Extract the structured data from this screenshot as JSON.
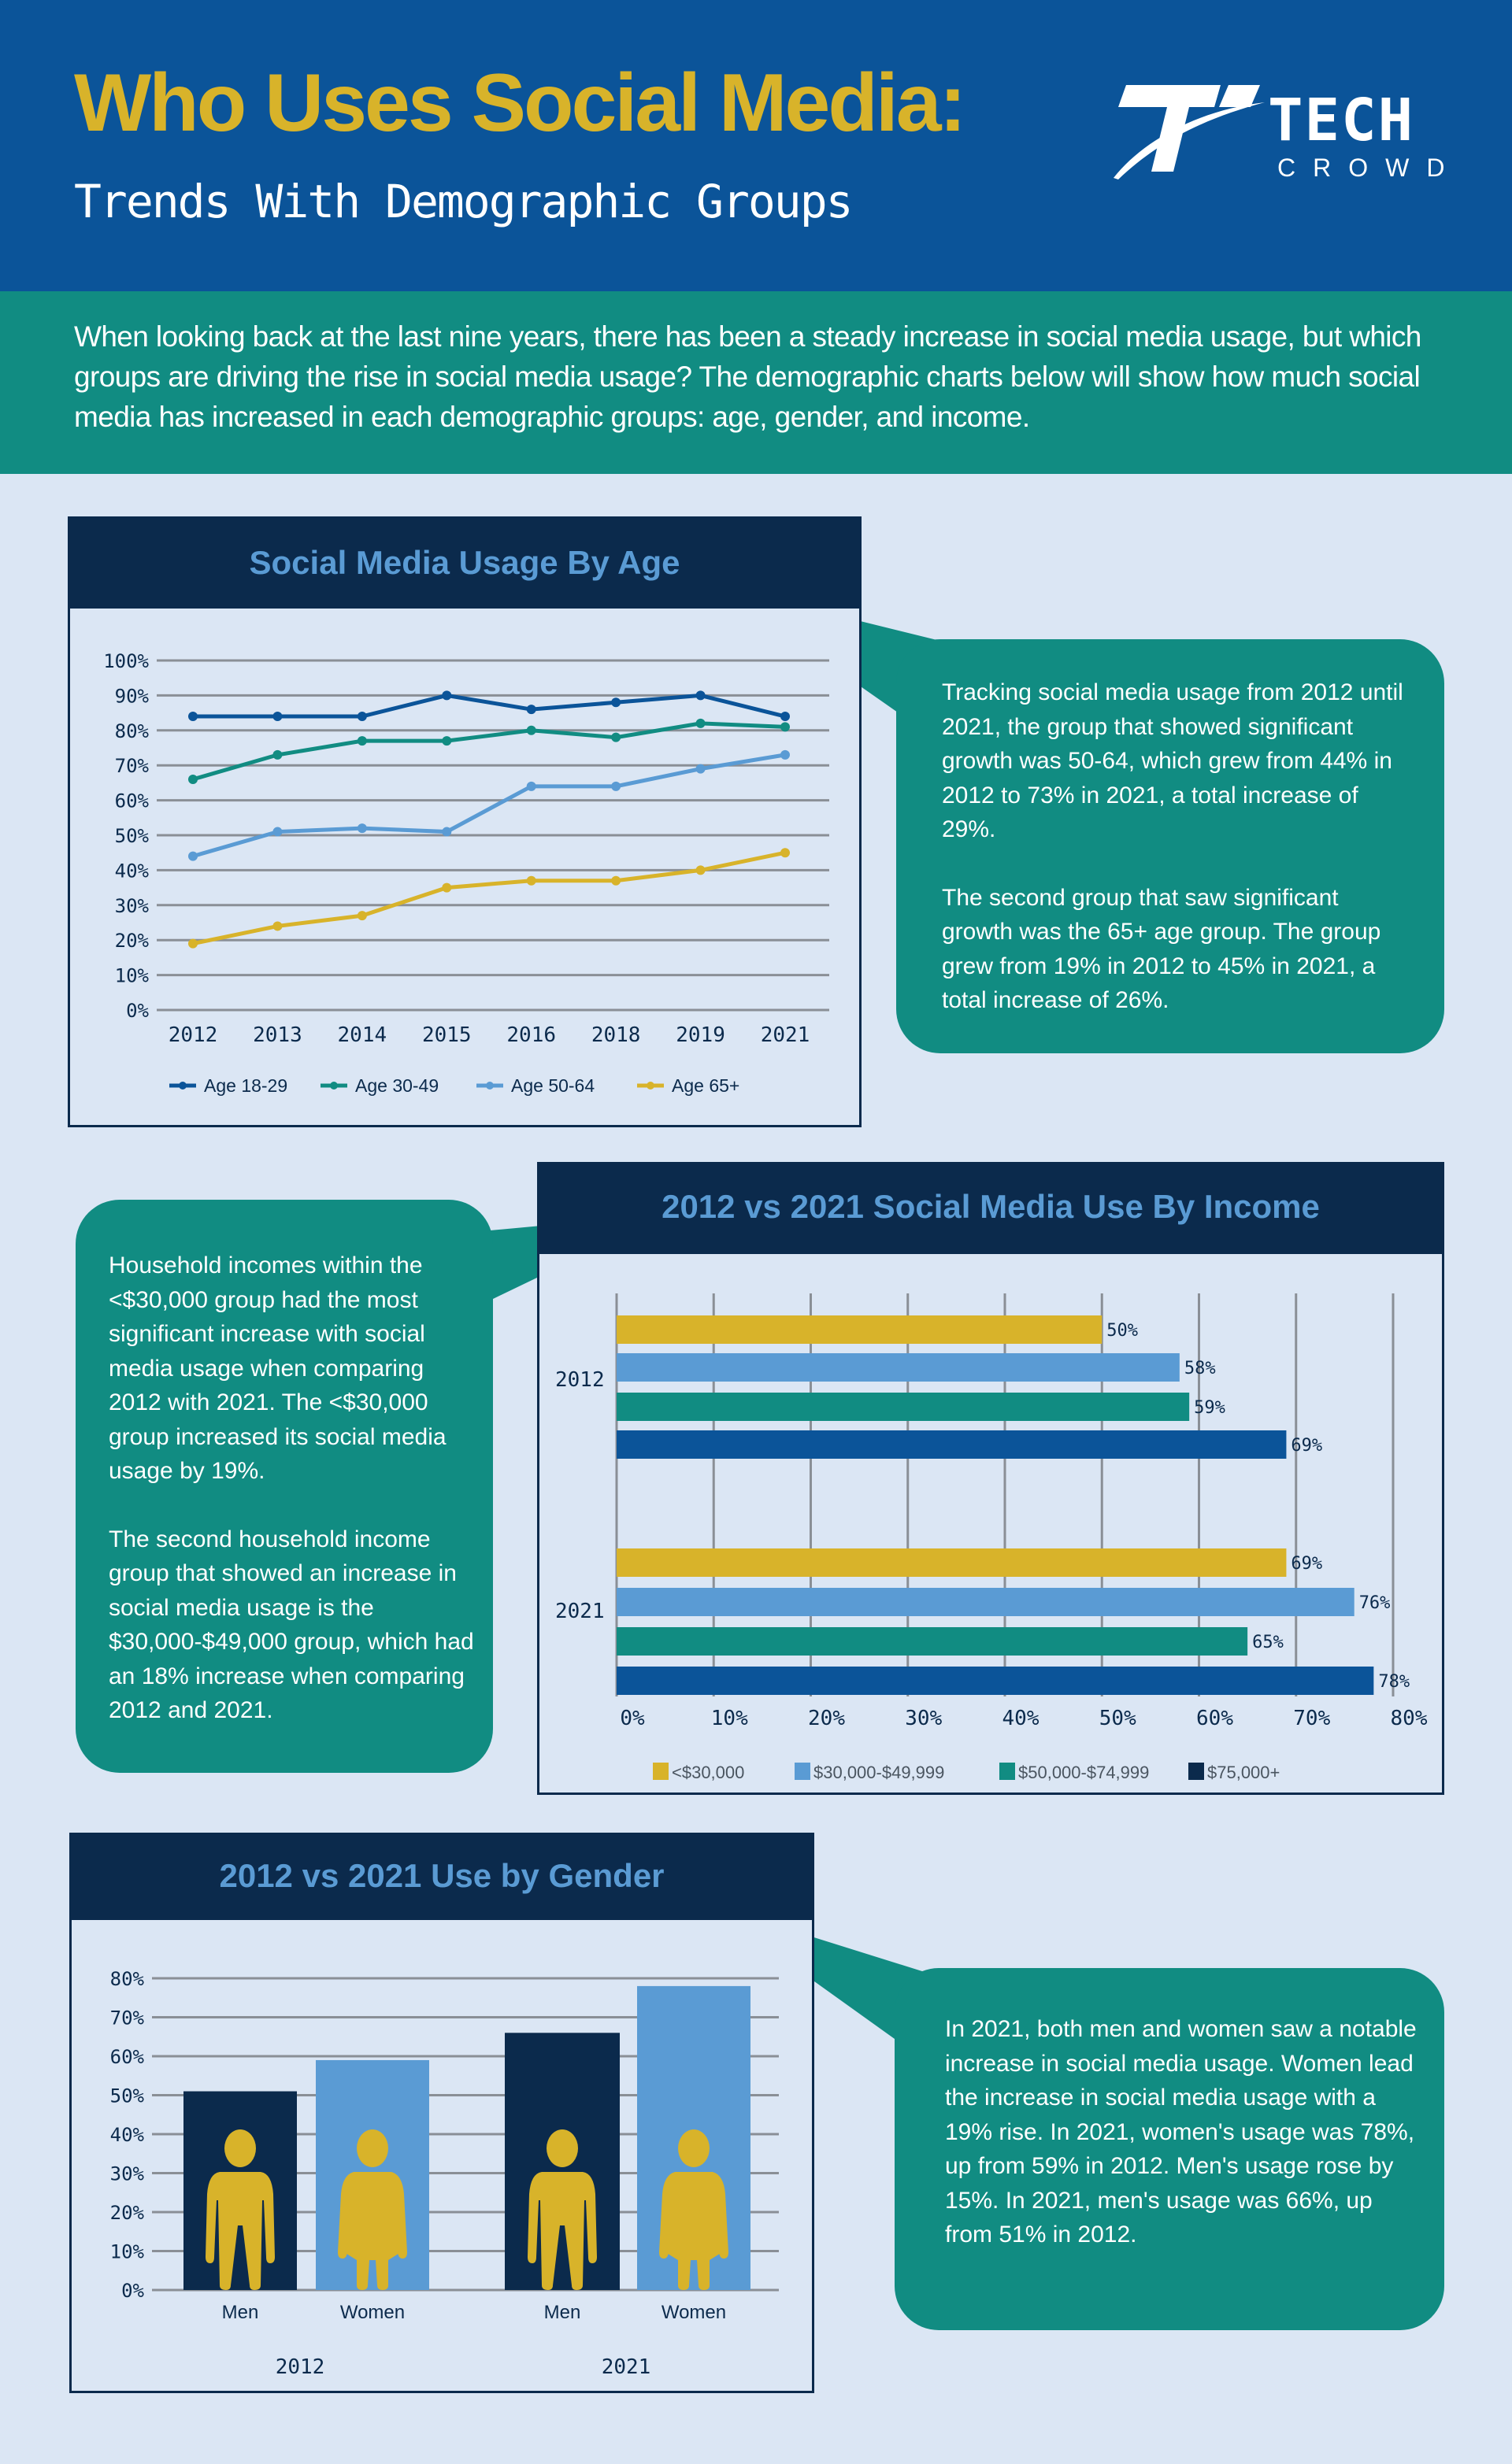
{
  "header": {
    "title": "Who Uses Social Media:",
    "subtitle": "Trends With Demographic Groups",
    "logo": {
      "word1": "TECH",
      "word2": "CROWD"
    }
  },
  "intro": "When looking back at the last nine years, there has been a steady increase in social media usage, but which groups are driving the rise in social media usage? The demographic charts below will show how much social media has increased in each demographic groups: age,  gender, and income.",
  "colors": {
    "header": "#0b5499",
    "teal": "#118c82",
    "background": "#dbe6f4",
    "navy": "#0b2a4c",
    "gold": "#d8b32a",
    "light_blue": "#5a9bd4",
    "blue": "#0b5499"
  },
  "age_note": [
    "Tracking social media usage from 2012 until 2021, the group that showed significant growth was 50-64, which grew from 44% in 2012 to 73% in 2021, a total increase of 29%.",
    "The second group that saw significant growth was the 65+ age group. The group grew from 19% in 2012 to 45% in 2021, a total increase of 26%."
  ],
  "income_note": [
    "Household incomes within the <$30,000 group had the most significant increase with social media usage when comparing 2012 with 2021. The  <$30,000 group increased its social media usage by 19%.",
    "The second household income group that showed an increase in social media usage is the $30,000-$49,000 group, which had an 18% increase when comparing 2012 and 2021."
  ],
  "gender_note": [
    "In 2021, both men and women saw a notable increase in social media usage. Women lead the increase in social media usage with a 19% rise. In 2021, women's usage was 78%, up from 59% in 2012. Men's usage rose by 15%.  In 2021, men's usage was 66%, up from 51% in 2012."
  ],
  "chart_data": [
    {
      "type": "line",
      "title": "Social Media Usage By Age",
      "categories": [
        "2012",
        "2013",
        "2014",
        "2015",
        "2016",
        "2018",
        "2019",
        "2021"
      ],
      "series": [
        {
          "name": "Age 18-29",
          "color": "#0b5499",
          "values": [
            84,
            84,
            84,
            90,
            86,
            88,
            90,
            84
          ]
        },
        {
          "name": "Age 30-49",
          "color": "#118c82",
          "values": [
            66,
            73,
            77,
            77,
            80,
            78,
            82,
            81
          ]
        },
        {
          "name": "Age 50-64",
          "color": "#5a9bd4",
          "values": [
            44,
            51,
            52,
            51,
            64,
            64,
            69,
            73
          ]
        },
        {
          "name": "Age 65+",
          "color": "#d8b32a",
          "values": [
            19,
            24,
            27,
            35,
            37,
            37,
            40,
            45
          ]
        }
      ],
      "yticks": [
        "0%",
        "10%",
        "20%",
        "30%",
        "40%",
        "50%",
        "60%",
        "70%",
        "80%",
        "90%",
        "100%"
      ],
      "ylim": [
        0,
        100
      ],
      "grid": true,
      "legend": "bottom"
    },
    {
      "type": "bar",
      "orientation": "horizontal",
      "title": "2012 vs 2021 Social Media Use By Income",
      "categories": [
        "2012",
        "2021"
      ],
      "series": [
        {
          "name": "<$30,000",
          "color": "#d8b32a",
          "values": [
            50,
            69
          ],
          "labels": [
            "50%",
            "69%"
          ]
        },
        {
          "name": "$30,000-$49,999",
          "color": "#5a9bd4",
          "values": [
            58,
            76
          ],
          "labels": [
            "58%",
            "76%"
          ]
        },
        {
          "name": "$50,000-$74,999",
          "color": "#118c82",
          "values": [
            59,
            65
          ],
          "labels": [
            "59%",
            "65%"
          ]
        },
        {
          "name": "$75,000+",
          "color": "#0b2a4c",
          "bar_color": "#0b5499",
          "values": [
            69,
            78
          ],
          "labels": [
            "69%",
            "78%"
          ]
        }
      ],
      "xticks": [
        "0%",
        "10%",
        "20%",
        "30%",
        "40%",
        "50%",
        "60%",
        "70%",
        "80%"
      ],
      "xlim": [
        0,
        80
      ],
      "grid": true,
      "legend": "bottom"
    },
    {
      "type": "bar",
      "title": "2012 vs 2021 Use by Gender",
      "groups": [
        "2012",
        "2021"
      ],
      "categories": [
        "Men",
        "Women",
        "Men",
        "Women"
      ],
      "bars": [
        {
          "group": "2012",
          "label": "Men",
          "value": 51,
          "color": "#0b2a4c",
          "icon": "man-icon"
        },
        {
          "group": "2012",
          "label": "Women",
          "value": 59,
          "color": "#5a9bd4",
          "icon": "woman-icon"
        },
        {
          "group": "2021",
          "label": "Men",
          "value": 66,
          "color": "#0b2a4c",
          "icon": "man-icon"
        },
        {
          "group": "2021",
          "label": "Women",
          "value": 78,
          "color": "#5a9bd4",
          "icon": "woman-icon"
        }
      ],
      "yticks": [
        "0%",
        "10%",
        "20%",
        "30%",
        "40%",
        "50%",
        "60%",
        "70%",
        "80%"
      ],
      "ylim": [
        0,
        80
      ],
      "grid": true
    }
  ]
}
